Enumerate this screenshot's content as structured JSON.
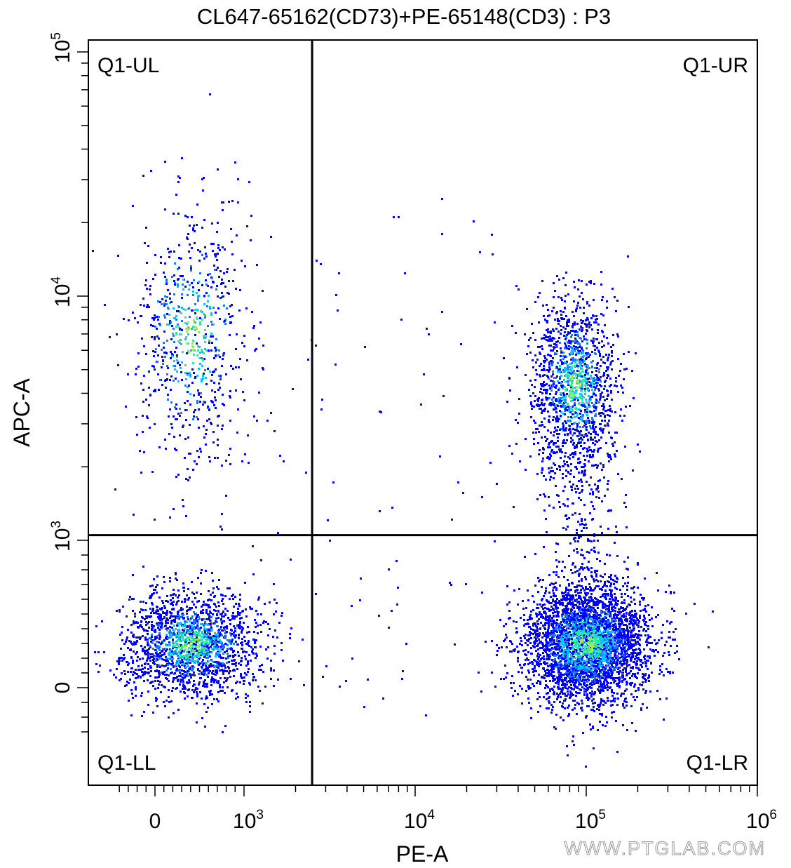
{
  "chart_data": {
    "type": "scatter",
    "title": "CL647-65162(CD73)+PE-65148(CD3) : P3",
    "xlabel": "PE-A",
    "ylabel": "APC-A",
    "x_scale": "biexponential",
    "y_scale": "biexponential",
    "xlim": [
      -400,
      1000000
    ],
    "ylim": [
      -300,
      100000
    ],
    "x_ticks": [
      {
        "value": 0,
        "base": "0",
        "exp": ""
      },
      {
        "value": 1000,
        "base": "10",
        "exp": "3"
      },
      {
        "value": 10000,
        "base": "10",
        "exp": "4"
      },
      {
        "value": 100000,
        "base": "10",
        "exp": "5"
      },
      {
        "value": 1000000,
        "base": "10",
        "exp": "6"
      }
    ],
    "y_ticks": [
      {
        "value": 0,
        "base": "0",
        "exp": ""
      },
      {
        "value": 1000,
        "base": "10",
        "exp": "3"
      },
      {
        "value": 10000,
        "base": "10",
        "exp": "4"
      },
      {
        "value": 100000,
        "base": "10",
        "exp": "5"
      }
    ],
    "gates": {
      "x_threshold": 2500,
      "y_threshold": 1050
    },
    "quadrants": [
      {
        "name": "Q1-UL",
        "position": "top-left"
      },
      {
        "name": "Q1-UR",
        "position": "top-right"
      },
      {
        "name": "Q1-LL",
        "position": "bottom-left"
      },
      {
        "name": "Q1-LR",
        "position": "bottom-right"
      }
    ],
    "populations": [
      {
        "label": "Q1-UL",
        "center_x": 400,
        "center_y": 7000,
        "events": 750
      },
      {
        "label": "Q1-UR",
        "center_x": 85000,
        "center_y": 4300,
        "events": 1450
      },
      {
        "label": "Q1-LL",
        "center_x": 400,
        "center_y": 300,
        "events": 1900
      },
      {
        "label": "Q1-LR",
        "center_x": 100000,
        "center_y": 300,
        "events": 3800
      }
    ],
    "density_colors": [
      "#0000ff",
      "#1478ff",
      "#00c8ff",
      "#2ee8a0",
      "#96f03c"
    ],
    "grid": false,
    "legend": "none"
  },
  "watermark": "WWW.PTGLAB.COM"
}
